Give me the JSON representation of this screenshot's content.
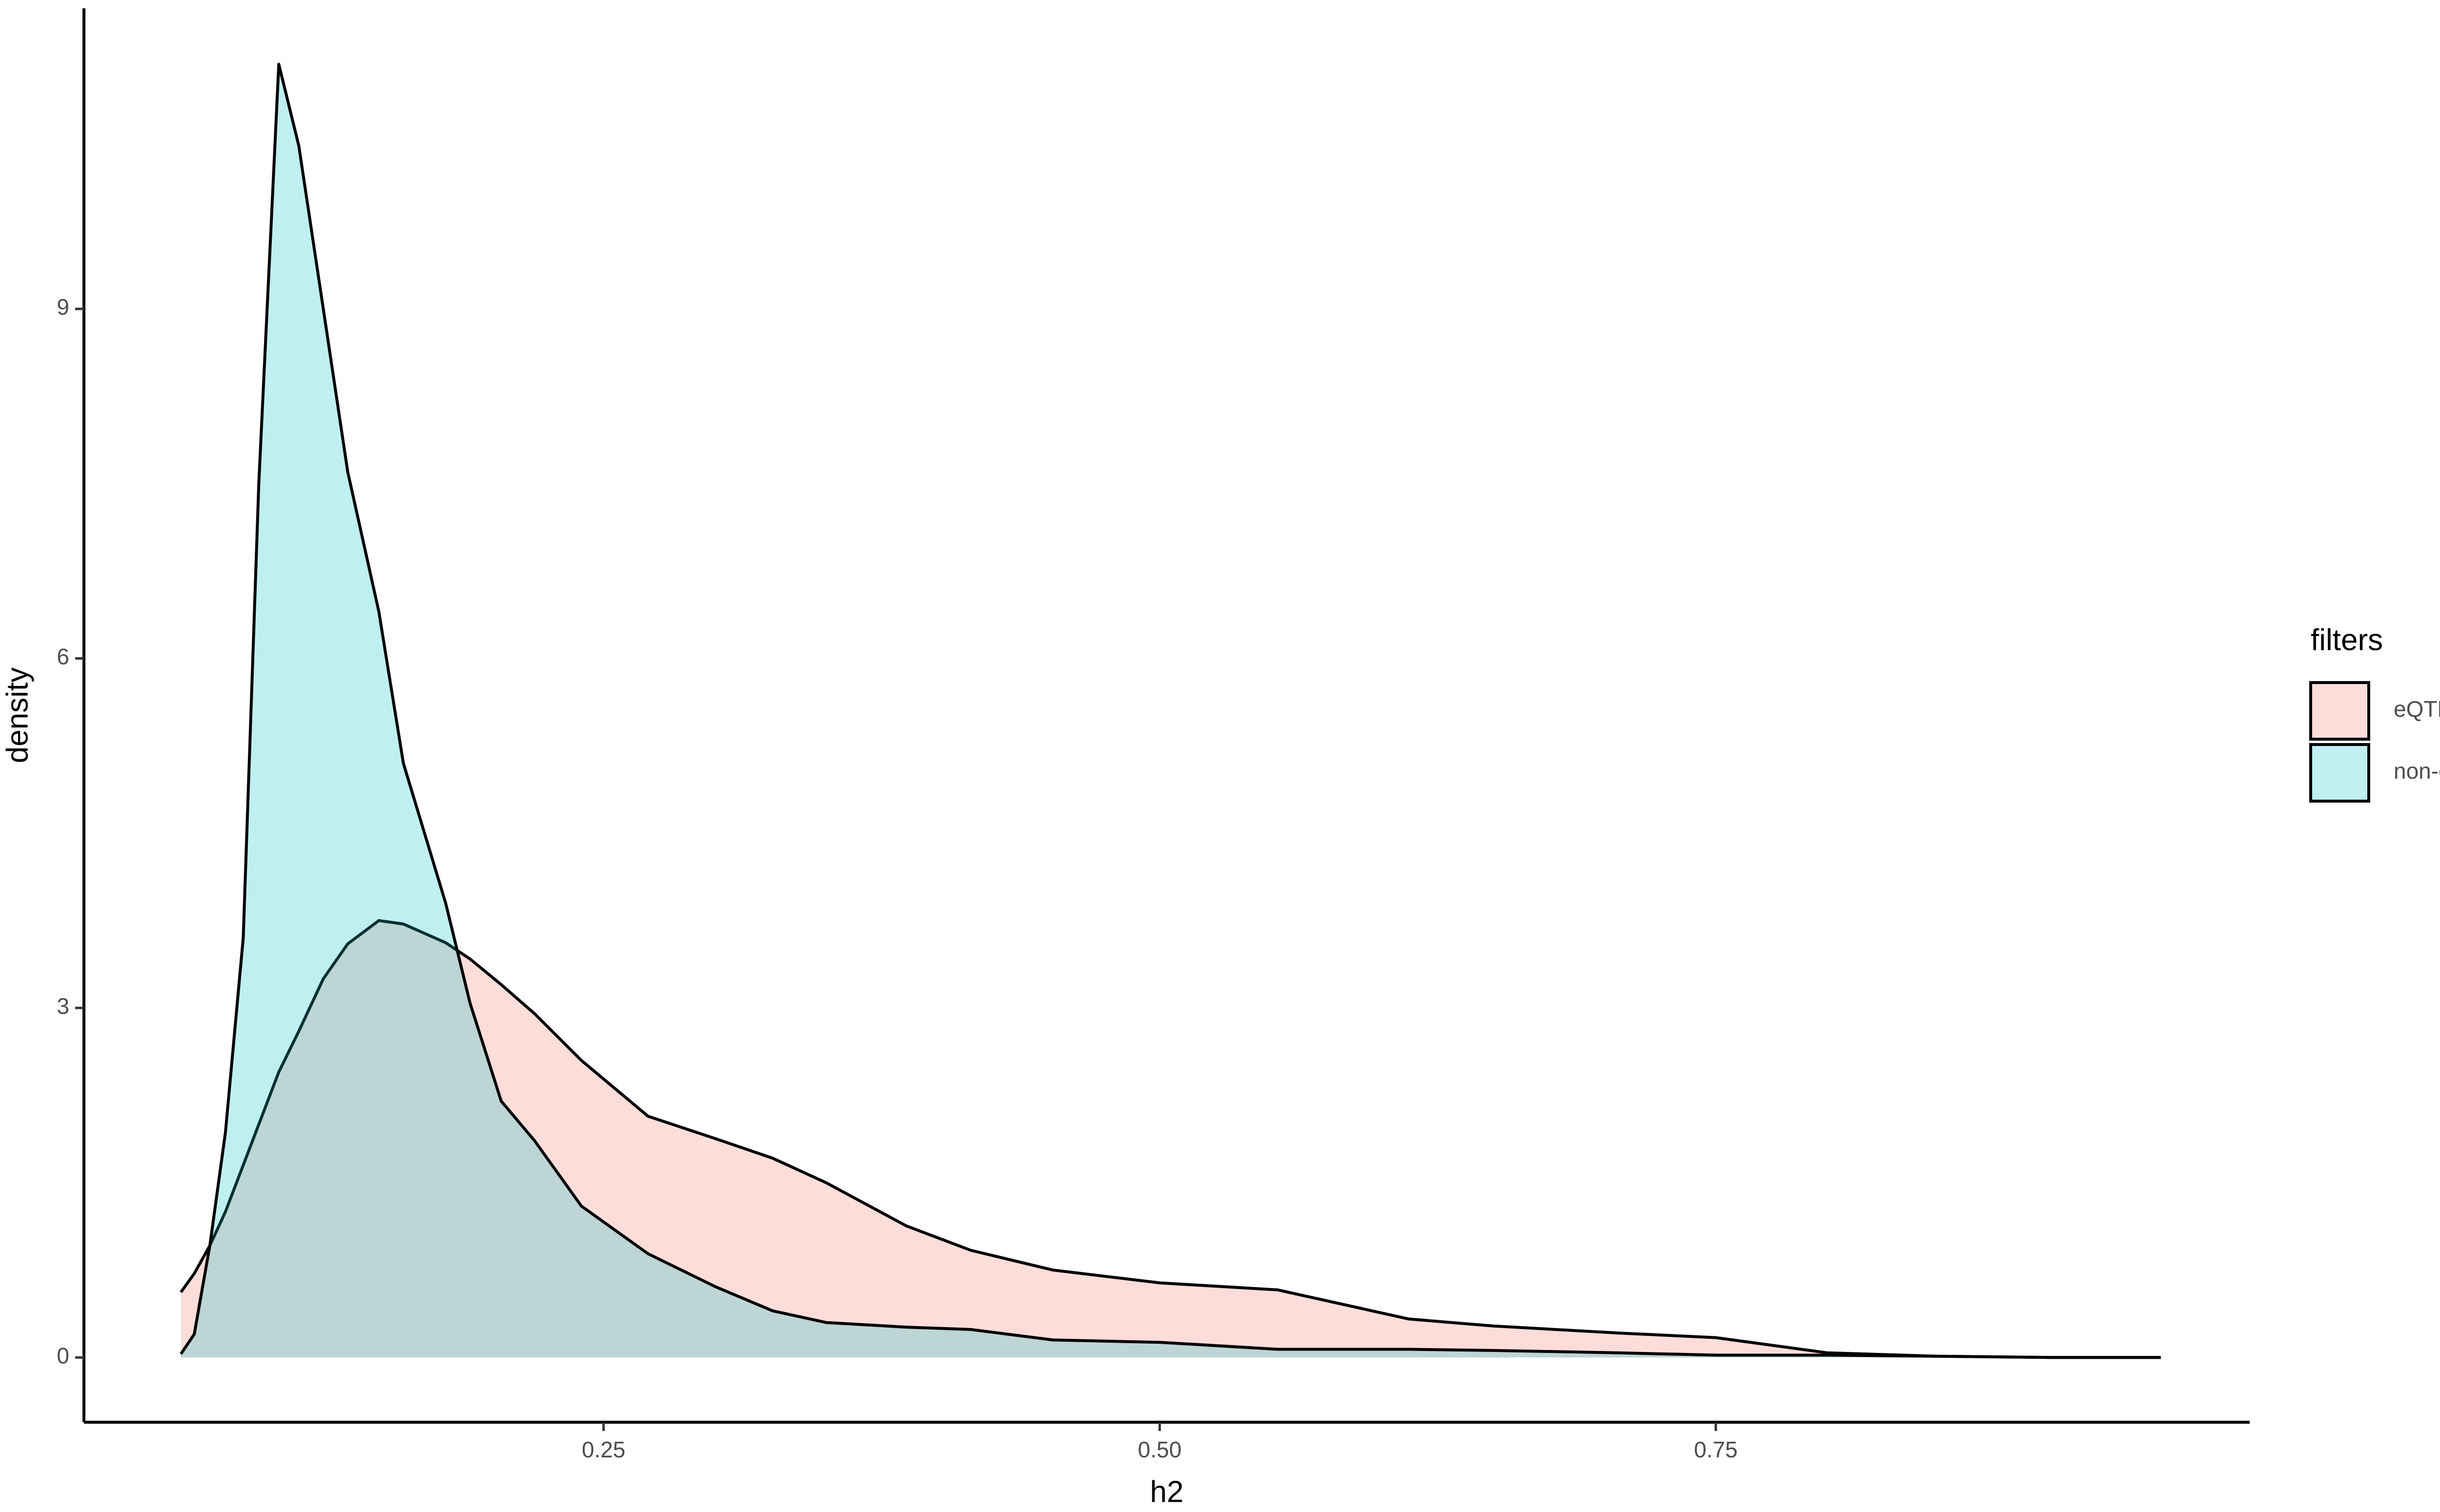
{
  "chart_data": {
    "type": "density",
    "x_label": "h2",
    "y_label": "density",
    "legend_title": "filters",
    "legend_position": "right",
    "x": [
      0.06,
      0.066,
      0.073,
      0.08,
      0.088,
      0.095,
      0.104,
      0.113,
      0.124,
      0.135,
      0.149,
      0.16,
      0.179,
      0.19,
      0.204,
      0.219,
      0.24,
      0.27,
      0.3,
      0.326,
      0.35,
      0.386,
      0.415,
      0.452,
      0.5,
      0.553,
      0.612,
      0.65,
      0.706,
      0.75,
      0.8,
      0.85,
      0.9,
      0.95
    ],
    "series": [
      {
        "name": "eQTL",
        "color": "#F8766D",
        "values": [
          0.56,
          0.72,
          0.96,
          1.25,
          1.65,
          2.0,
          2.45,
          2.8,
          3.25,
          3.55,
          3.75,
          3.72,
          3.56,
          3.42,
          3.2,
          2.95,
          2.55,
          2.07,
          1.88,
          1.71,
          1.5,
          1.13,
          0.92,
          0.75,
          0.64,
          0.58,
          0.33,
          0.27,
          0.21,
          0.17,
          0.04,
          0.01,
          0,
          0
        ]
      },
      {
        "name": "non-eQTL",
        "color": "#00BFC4",
        "values": [
          0.03,
          0.2,
          0.96,
          1.93,
          3.6,
          7.5,
          11.1,
          10.4,
          9.0,
          7.6,
          6.4,
          5.1,
          3.9,
          3.04,
          2.2,
          1.86,
          1.3,
          0.89,
          0.61,
          0.4,
          0.3,
          0.26,
          0.24,
          0.15,
          0.13,
          0.07,
          0.07,
          0.06,
          0.04,
          0.02,
          0.02,
          0.01,
          0,
          0
        ]
      }
    ],
    "xlim": [
      0.0164,
      0.99
    ],
    "xticks": [
      0.25,
      {
        "value": 0.5,
        "label": "0.50"
      },
      0.75
    ],
    "ylim": [
      -0.556,
      11.58
    ],
    "yticks": [
      0,
      3,
      6,
      9
    ],
    "fill_opacity": 0.25,
    "grid": false
  }
}
